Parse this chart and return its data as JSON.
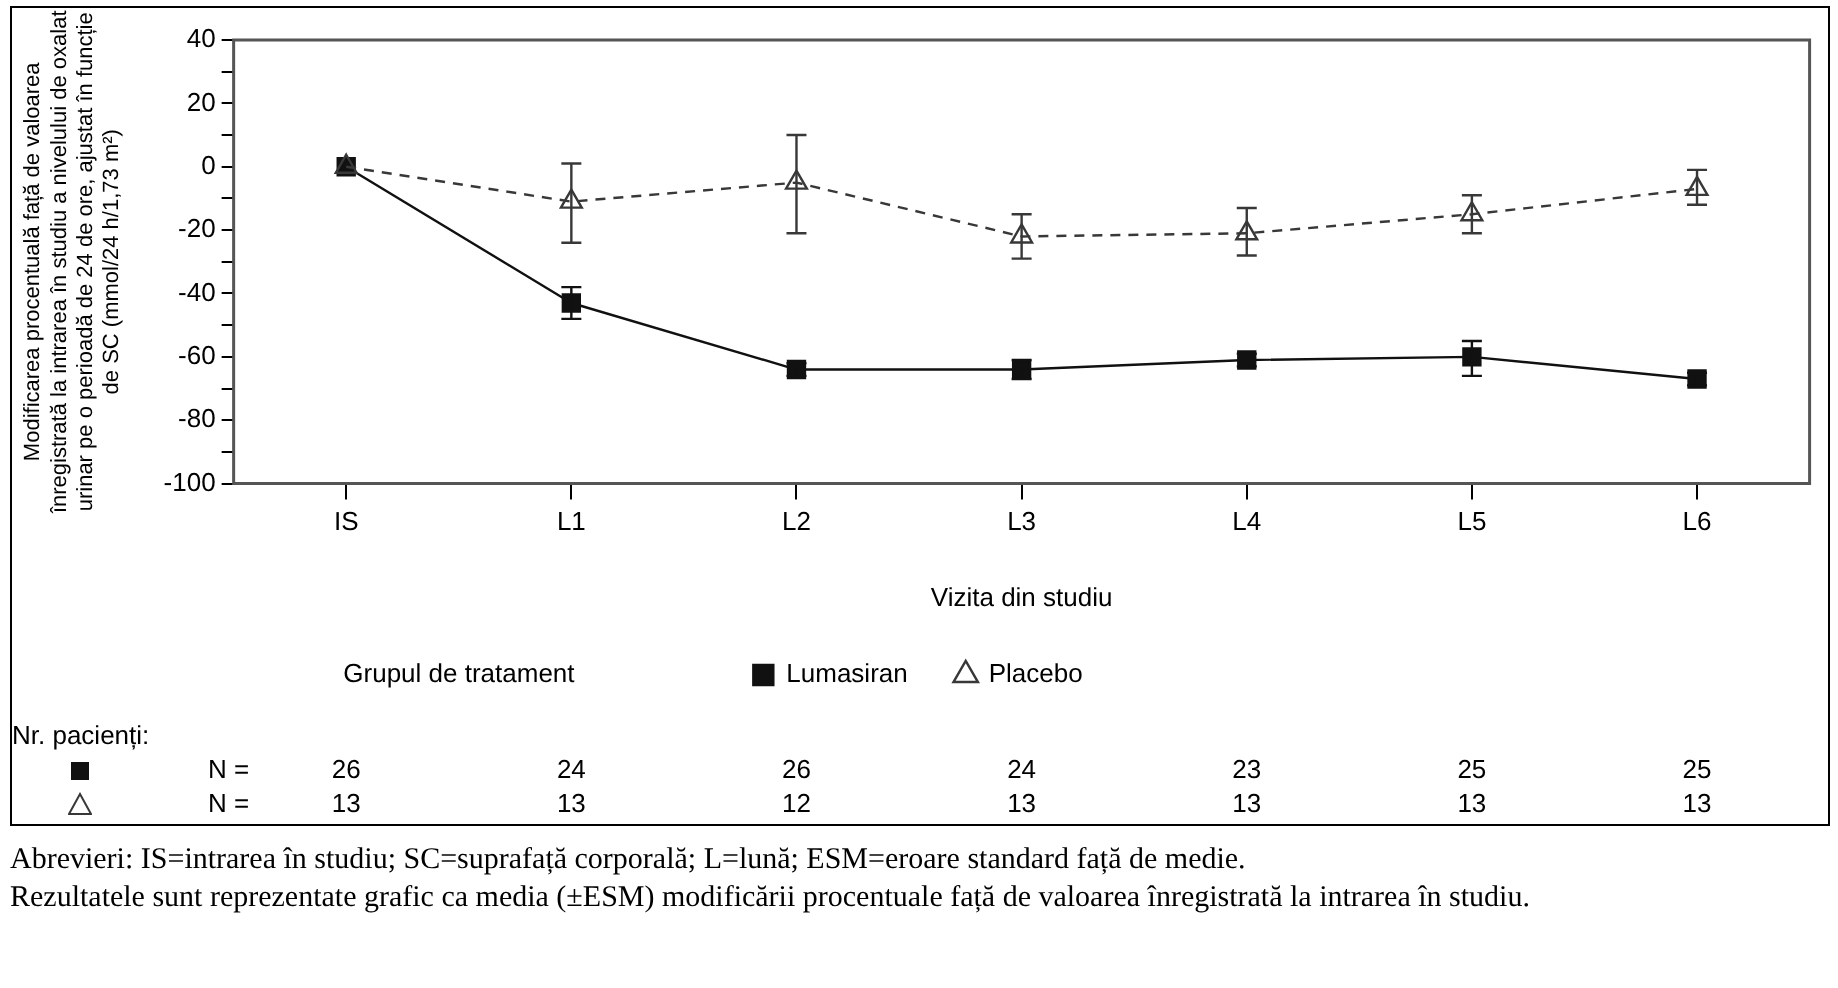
{
  "chart_data": {
    "type": "line",
    "ylabel": "Modificarea procentuală față de valoarea înregistrată la intrarea în studiu a nivelului de oxalat urinar pe o perioadă de 24 de ore, ajustat în funcție de SC (mmol/24 h/1,73 m²)",
    "xlabel": "Vizita din studiu",
    "legend_title": "Grupul de tratament",
    "legend": "bottom",
    "grid": false,
    "categories": [
      "IS",
      "L1",
      "L2",
      "L3",
      "L4",
      "L5",
      "L6"
    ],
    "ylim": [
      -100,
      40
    ],
    "yticks": [
      -100,
      {
        "value": -90,
        "label": null
      },
      -80,
      {
        "value": -70,
        "label": null
      },
      -60,
      {
        "value": -50,
        "label": null
      },
      -40,
      {
        "value": -30,
        "label": null
      },
      -20,
      {
        "value": -10,
        "label": null
      },
      0,
      {
        "value": 10,
        "label": null
      },
      20,
      {
        "value": 30,
        "label": null
      },
      40
    ],
    "series": [
      {
        "name": "Lumasiran",
        "color": "#111111",
        "marker": "square",
        "line_style": "solid",
        "values": [
          0,
          -43,
          -64,
          -64,
          -61,
          -60,
          -67
        ],
        "errors": [
          null,
          [
            -48,
            -38
          ],
          [
            -66,
            -62
          ],
          [
            -67,
            -61
          ],
          [
            -63,
            -59
          ],
          [
            -66,
            -55
          ],
          [
            -69,
            -65
          ]
        ]
      },
      {
        "name": "Placebo",
        "color": "#383838",
        "marker": "triangle",
        "line_style": "dashed",
        "values": [
          0,
          -11,
          -5,
          -22,
          -21,
          -15,
          -7
        ],
        "errors": [
          null,
          [
            -24,
            1
          ],
          [
            -21,
            10
          ],
          [
            -29,
            -15
          ],
          [
            -28,
            -13
          ],
          [
            -21,
            -9
          ],
          [
            -12,
            -1
          ]
        ]
      }
    ],
    "annotations": [
      "Nr. pacienți:",
      "N =",
      "26",
      "24",
      "26",
      "24",
      "23",
      "25",
      "25",
      "N =",
      "13",
      "13",
      "12",
      "13",
      "13",
      "13",
      "13",
      "Abrevieri: IS=intrarea în studiu; SC=suprafață corporală; L=lună; ESM=eroare standard față de medie.",
      "Rezultatele sunt reprezentate grafic ca media (±ESM) modificării procentuale față de valoarea înregistrată la intrarea în studiu."
    ]
  }
}
